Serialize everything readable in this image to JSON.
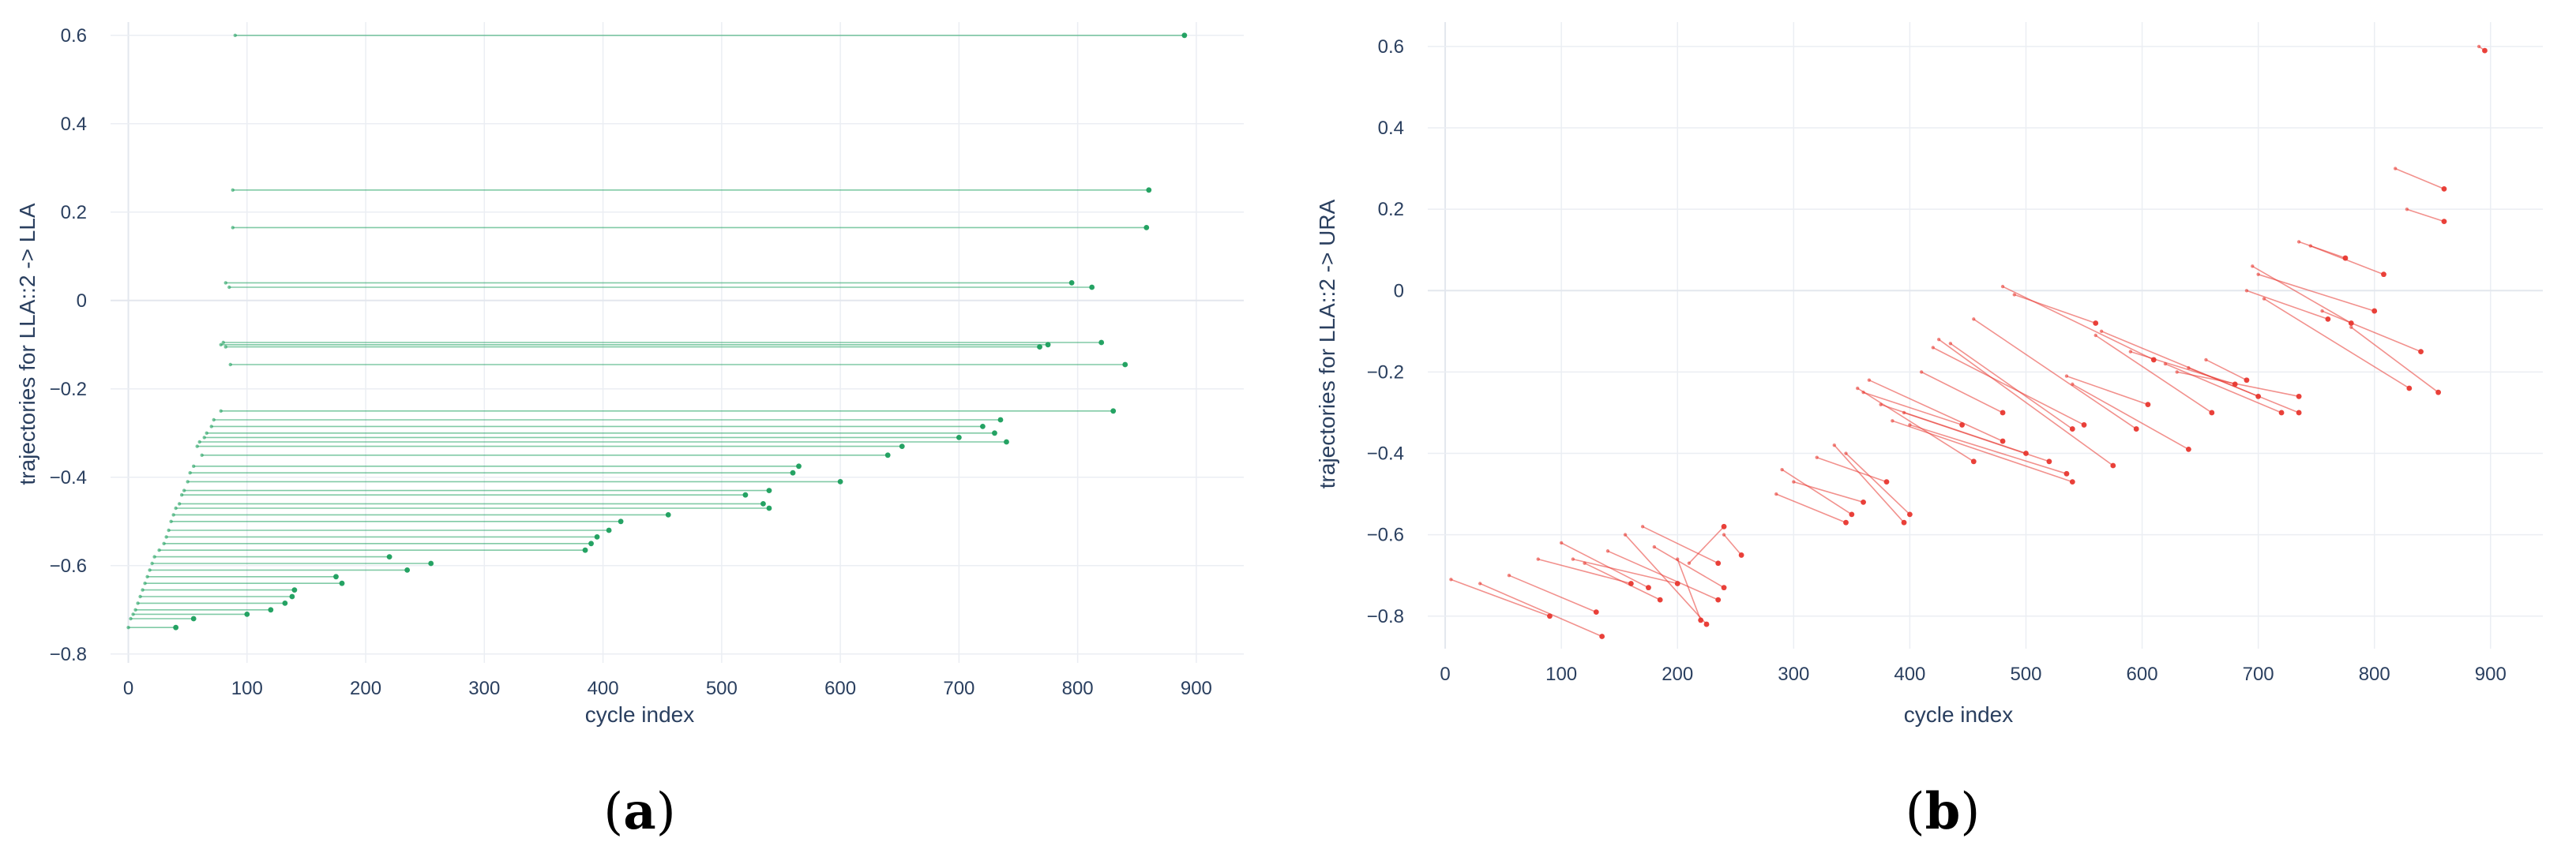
{
  "colors": {
    "panel_a": "#1a9e5c",
    "panel_b": "#e8372f",
    "text": "#2a3f5f",
    "grid": "#ebeef3"
  },
  "chart_data": [
    {
      "type": "line",
      "panel_label": "a",
      "xlabel": "cycle index",
      "ylabel": "trajectories for LLA::2 -> LLA",
      "xlim": [
        -15,
        940
      ],
      "ylim": [
        -0.82,
        0.63
      ],
      "x_ticks": [
        0,
        100,
        200,
        300,
        400,
        500,
        600,
        700,
        800,
        900
      ],
      "y_ticks": [
        -0.8,
        -0.6,
        -0.4,
        -0.2,
        0,
        0.2,
        0.4,
        0.6
      ],
      "y_tick_labels": [
        "−0.8",
        "−0.6",
        "−0.4",
        "−0.2",
        "0",
        "0.2",
        "0.4",
        "0.6"
      ],
      "grid": true,
      "segments": [
        [
          [
            90,
            0.6
          ],
          [
            890,
            0.6
          ]
        ],
        [
          [
            88,
            0.25
          ],
          [
            860,
            0.25
          ]
        ],
        [
          [
            88,
            0.165
          ],
          [
            858,
            0.165
          ]
        ],
        [
          [
            82,
            0.04
          ],
          [
            795,
            0.04
          ]
        ],
        [
          [
            85,
            0.03
          ],
          [
            812,
            0.03
          ]
        ],
        [
          [
            80,
            -0.095
          ],
          [
            820,
            -0.095
          ]
        ],
        [
          [
            78,
            -0.1
          ],
          [
            775,
            -0.1
          ]
        ],
        [
          [
            82,
            -0.105
          ],
          [
            768,
            -0.105
          ]
        ],
        [
          [
            86,
            -0.145
          ],
          [
            840,
            -0.145
          ]
        ],
        [
          [
            78,
            -0.25
          ],
          [
            830,
            -0.25
          ]
        ],
        [
          [
            72,
            -0.27
          ],
          [
            735,
            -0.27
          ]
        ],
        [
          [
            70,
            -0.285
          ],
          [
            720,
            -0.285
          ]
        ],
        [
          [
            66,
            -0.3
          ],
          [
            730,
            -0.3
          ]
        ],
        [
          [
            64,
            -0.31
          ],
          [
            700,
            -0.31
          ]
        ],
        [
          [
            60,
            -0.32
          ],
          [
            740,
            -0.32
          ]
        ],
        [
          [
            58,
            -0.33
          ],
          [
            652,
            -0.33
          ]
        ],
        [
          [
            62,
            -0.35
          ],
          [
            640,
            -0.35
          ]
        ],
        [
          [
            55,
            -0.375
          ],
          [
            565,
            -0.375
          ]
        ],
        [
          [
            52,
            -0.39
          ],
          [
            560,
            -0.39
          ]
        ],
        [
          [
            50,
            -0.41
          ],
          [
            600,
            -0.41
          ]
        ],
        [
          [
            47,
            -0.43
          ],
          [
            540,
            -0.43
          ]
        ],
        [
          [
            45,
            -0.44
          ],
          [
            520,
            -0.44
          ]
        ],
        [
          [
            43,
            -0.46
          ],
          [
            535,
            -0.46
          ]
        ],
        [
          [
            40,
            -0.47
          ],
          [
            540,
            -0.47
          ]
        ],
        [
          [
            38,
            -0.485
          ],
          [
            455,
            -0.485
          ]
        ],
        [
          [
            36,
            -0.5
          ],
          [
            415,
            -0.5
          ]
        ],
        [
          [
            34,
            -0.52
          ],
          [
            405,
            -0.52
          ]
        ],
        [
          [
            32,
            -0.535
          ],
          [
            395,
            -0.535
          ]
        ],
        [
          [
            30,
            -0.55
          ],
          [
            390,
            -0.55
          ]
        ],
        [
          [
            26,
            -0.565
          ],
          [
            385,
            -0.565
          ]
        ],
        [
          [
            22,
            -0.58
          ],
          [
            220,
            -0.58
          ]
        ],
        [
          [
            20,
            -0.595
          ],
          [
            255,
            -0.595
          ]
        ],
        [
          [
            18,
            -0.61
          ],
          [
            235,
            -0.61
          ]
        ],
        [
          [
            16,
            -0.625
          ],
          [
            175,
            -0.625
          ]
        ],
        [
          [
            14,
            -0.64
          ],
          [
            180,
            -0.64
          ]
        ],
        [
          [
            12,
            -0.655
          ],
          [
            140,
            -0.655
          ]
        ],
        [
          [
            10,
            -0.67
          ],
          [
            138,
            -0.67
          ]
        ],
        [
          [
            8,
            -0.685
          ],
          [
            132,
            -0.685
          ]
        ],
        [
          [
            6,
            -0.7
          ],
          [
            120,
            -0.7
          ]
        ],
        [
          [
            4,
            -0.71
          ],
          [
            100,
            -0.71
          ]
        ],
        [
          [
            2,
            -0.72
          ],
          [
            55,
            -0.72
          ]
        ],
        [
          [
            0,
            -0.74
          ],
          [
            40,
            -0.74
          ]
        ]
      ]
    },
    {
      "type": "line",
      "panel_label": "b",
      "xlabel": "cycle index",
      "ylabel": "trajectories for LLA::2 -> URA",
      "xlim": [
        -15,
        945
      ],
      "ylim": [
        -0.88,
        0.66
      ],
      "x_ticks": [
        0,
        100,
        200,
        300,
        400,
        500,
        600,
        700,
        800,
        900
      ],
      "y_ticks": [
        -0.8,
        -0.6,
        -0.4,
        -0.2,
        0,
        0.2,
        0.4,
        0.6
      ],
      "y_tick_labels": [
        "−0.8",
        "−0.6",
        "−0.4",
        "−0.2",
        "0",
        "0.2",
        "0.4",
        "0.6"
      ],
      "grid": true,
      "segments": [
        [
          [
            5,
            -0.71
          ],
          [
            90,
            -0.8
          ]
        ],
        [
          [
            30,
            -0.72
          ],
          [
            135,
            -0.85
          ]
        ],
        [
          [
            55,
            -0.7
          ],
          [
            130,
            -0.79
          ]
        ],
        [
          [
            80,
            -0.66
          ],
          [
            160,
            -0.72
          ]
        ],
        [
          [
            100,
            -0.62
          ],
          [
            175,
            -0.73
          ]
        ],
        [
          [
            110,
            -0.66
          ],
          [
            200,
            -0.72
          ]
        ],
        [
          [
            120,
            -0.67
          ],
          [
            185,
            -0.76
          ]
        ],
        [
          [
            140,
            -0.64
          ],
          [
            235,
            -0.76
          ]
        ],
        [
          [
            155,
            -0.6
          ],
          [
            225,
            -0.82
          ]
        ],
        [
          [
            170,
            -0.58
          ],
          [
            235,
            -0.67
          ]
        ],
        [
          [
            180,
            -0.63
          ],
          [
            240,
            -0.73
          ]
        ],
        [
          [
            200,
            -0.66
          ],
          [
            220,
            -0.81
          ]
        ],
        [
          [
            210,
            -0.67
          ],
          [
            240,
            -0.58
          ]
        ],
        [
          [
            240,
            -0.6
          ],
          [
            255,
            -0.65
          ]
        ],
        [
          [
            285,
            -0.5
          ],
          [
            345,
            -0.57
          ]
        ],
        [
          [
            290,
            -0.44
          ],
          [
            350,
            -0.55
          ]
        ],
        [
          [
            300,
            -0.47
          ],
          [
            360,
            -0.52
          ]
        ],
        [
          [
            320,
            -0.41
          ],
          [
            380,
            -0.47
          ]
        ],
        [
          [
            335,
            -0.38
          ],
          [
            395,
            -0.57
          ]
        ],
        [
          [
            345,
            -0.4
          ],
          [
            400,
            -0.55
          ]
        ],
        [
          [
            355,
            -0.24
          ],
          [
            455,
            -0.42
          ]
        ],
        [
          [
            360,
            -0.25
          ],
          [
            445,
            -0.33
          ]
        ],
        [
          [
            365,
            -0.22
          ],
          [
            480,
            -0.37
          ]
        ],
        [
          [
            375,
            -0.28
          ],
          [
            500,
            -0.4
          ]
        ],
        [
          [
            385,
            -0.32
          ],
          [
            540,
            -0.47
          ]
        ],
        [
          [
            395,
            -0.3
          ],
          [
            520,
            -0.42
          ]
        ],
        [
          [
            400,
            -0.33
          ],
          [
            535,
            -0.45
          ]
        ],
        [
          [
            410,
            -0.2
          ],
          [
            480,
            -0.3
          ]
        ],
        [
          [
            420,
            -0.14
          ],
          [
            550,
            -0.33
          ]
        ],
        [
          [
            425,
            -0.12
          ],
          [
            575,
            -0.43
          ]
        ],
        [
          [
            435,
            -0.13
          ],
          [
            540,
            -0.34
          ]
        ],
        [
          [
            455,
            -0.07
          ],
          [
            595,
            -0.34
          ]
        ],
        [
          [
            480,
            0.01
          ],
          [
            610,
            -0.17
          ]
        ],
        [
          [
            490,
            -0.01
          ],
          [
            560,
            -0.08
          ]
        ],
        [
          [
            535,
            -0.21
          ],
          [
            605,
            -0.28
          ]
        ],
        [
          [
            540,
            -0.23
          ],
          [
            640,
            -0.39
          ]
        ],
        [
          [
            560,
            -0.11
          ],
          [
            660,
            -0.3
          ]
        ],
        [
          [
            565,
            -0.1
          ],
          [
            700,
            -0.26
          ]
        ],
        [
          [
            590,
            -0.15
          ],
          [
            680,
            -0.23
          ]
        ],
        [
          [
            620,
            -0.18
          ],
          [
            720,
            -0.3
          ]
        ],
        [
          [
            630,
            -0.2
          ],
          [
            735,
            -0.26
          ]
        ],
        [
          [
            640,
            -0.19
          ],
          [
            735,
            -0.3
          ]
        ],
        [
          [
            655,
            -0.17
          ],
          [
            690,
            -0.22
          ]
        ],
        [
          [
            690,
            0.0
          ],
          [
            760,
            -0.07
          ]
        ],
        [
          [
            695,
            0.06
          ],
          [
            780,
            -0.08
          ]
        ],
        [
          [
            700,
            0.04
          ],
          [
            800,
            -0.05
          ]
        ],
        [
          [
            705,
            -0.02
          ],
          [
            830,
            -0.24
          ]
        ],
        [
          [
            735,
            0.12
          ],
          [
            775,
            0.08
          ]
        ],
        [
          [
            745,
            0.11
          ],
          [
            808,
            0.04
          ]
        ],
        [
          [
            755,
            -0.05
          ],
          [
            840,
            -0.15
          ]
        ],
        [
          [
            780,
            -0.09
          ],
          [
            855,
            -0.25
          ]
        ],
        [
          [
            818,
            0.3
          ],
          [
            860,
            0.25
          ]
        ],
        [
          [
            828,
            0.2
          ],
          [
            860,
            0.17
          ]
        ],
        [
          [
            890,
            0.6
          ],
          [
            895,
            0.59
          ]
        ]
      ]
    }
  ]
}
